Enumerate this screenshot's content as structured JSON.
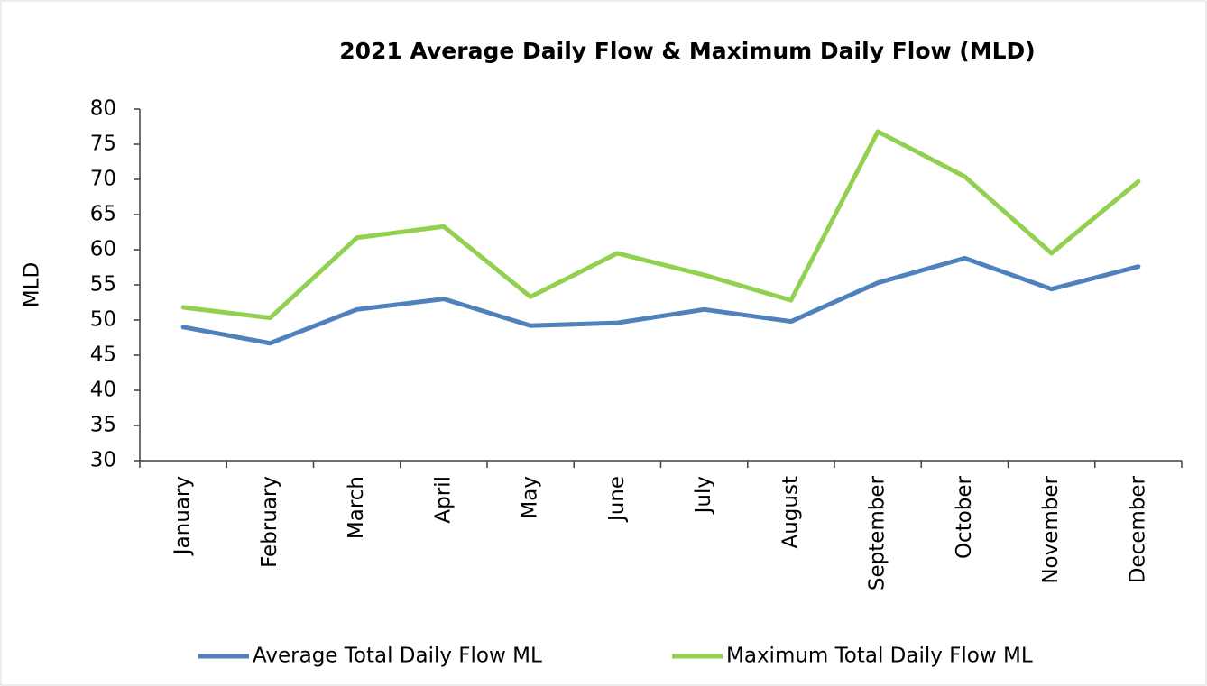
{
  "chart_data": {
    "type": "line",
    "title": "2021 Average Daily Flow & Maximum Daily Flow (MLD)",
    "y_label": "MLD",
    "categories": [
      "January",
      "February",
      "March",
      "April",
      "May",
      "June",
      "July",
      "August",
      "September",
      "October",
      "November",
      "December"
    ],
    "series": [
      {
        "name": "Average Total Daily Flow ML",
        "color": "#4f81bd",
        "values": [
          49,
          46.7,
          51.5,
          53,
          49.2,
          49.6,
          51.5,
          49.8,
          55.3,
          58.8,
          54.4,
          57.6
        ]
      },
      {
        "name": "Maximum Total Daily Flow ML",
        "color": "#92d050",
        "values": [
          51.8,
          50.3,
          61.7,
          63.3,
          53.3,
          59.5,
          56.4,
          52.8,
          76.8,
          70.4,
          59.5,
          69.7
        ]
      }
    ],
    "ylim": [
      30,
      80
    ],
    "yticks": [
      30,
      35,
      40,
      45,
      50,
      55,
      60,
      65,
      70,
      75,
      80
    ],
    "legend": "bottom"
  }
}
